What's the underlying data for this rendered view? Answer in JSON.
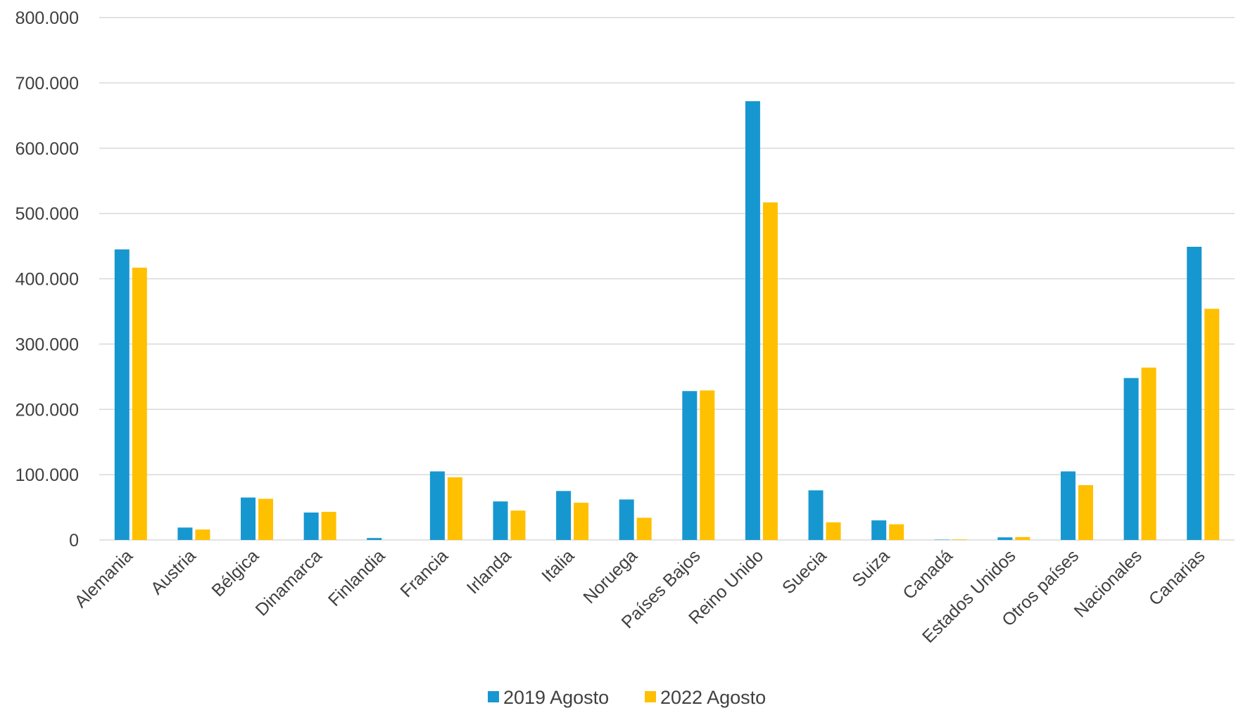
{
  "chart_data": {
    "type": "bar",
    "title": "",
    "xlabel": "",
    "ylabel": "",
    "ylim": [
      0,
      800000
    ],
    "yticks": [
      0,
      100000,
      200000,
      300000,
      400000,
      500000,
      600000,
      700000,
      800000
    ],
    "ytick_labels": [
      "0",
      "100.000",
      "200.000",
      "300.000",
      "400.000",
      "500.000",
      "600.000",
      "700.000",
      "800.000"
    ],
    "grid": true,
    "legend_position": "bottom",
    "categories": [
      "Alemania",
      "Austria",
      "Bélgica",
      "Dinamarca",
      "Finlandia",
      "Francia",
      "Irlanda",
      "Italia",
      "Noruega",
      "Países Bajos",
      "Reino Unido",
      "Suecia",
      "Suiza",
      "Canadá",
      "Estados Unidos",
      "Otros países",
      "Nacionales",
      "Canarias"
    ],
    "series": [
      {
        "name": "2019 Agosto",
        "color": "#1797d0",
        "values": [
          445000,
          19000,
          65000,
          42000,
          3000,
          105000,
          59000,
          75000,
          62000,
          228000,
          672000,
          76000,
          30000,
          500,
          4000,
          105000,
          248000,
          449000
        ]
      },
      {
        "name": "2022 Agosto",
        "color": "#ffc000",
        "values": [
          417000,
          16000,
          63000,
          43000,
          0,
          96000,
          45000,
          57000,
          34000,
          229000,
          517000,
          27000,
          24000,
          800,
          4500,
          84000,
          264000,
          354000
        ]
      }
    ]
  }
}
